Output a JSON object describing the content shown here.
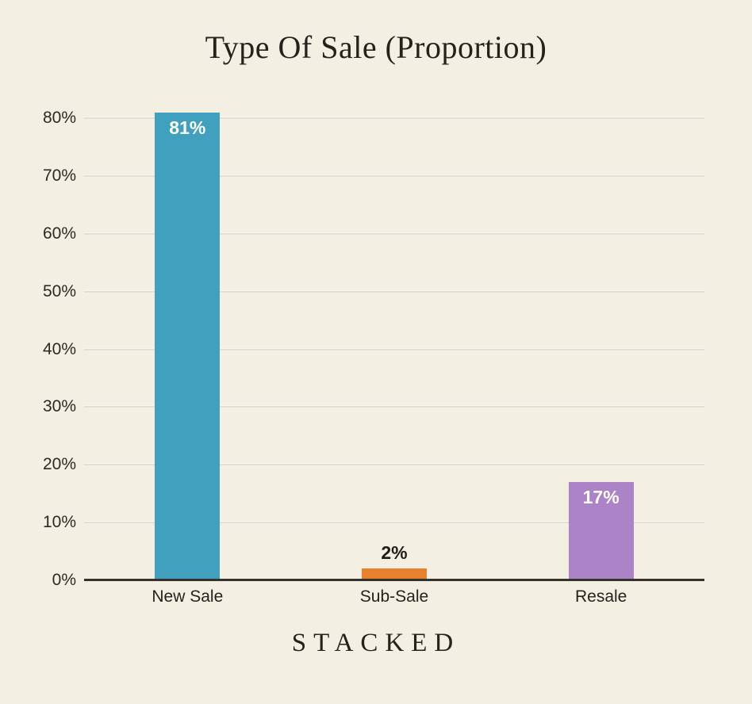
{
  "page": {
    "background_color": "#f3efe3"
  },
  "footer": {
    "brand": "STACKED"
  },
  "chart_data": {
    "type": "bar",
    "title": "Type Of Sale (Proportion)",
    "categories": [
      "New Sale",
      "Sub-Sale",
      "Resale"
    ],
    "values": [
      81,
      2,
      17
    ],
    "value_labels": [
      "81%",
      "2%",
      "17%"
    ],
    "value_label_placement": [
      "inside",
      "outside",
      "inside"
    ],
    "bar_colors": [
      "#41a0bd",
      "#e8812e",
      "#ac83c6"
    ],
    "xlabel": "",
    "ylabel": "",
    "ylim": [
      0,
      82.5
    ],
    "yticks": [
      {
        "value": 0,
        "label": "0%"
      },
      {
        "value": 10,
        "label": "10%"
      },
      {
        "value": 20,
        "label": "20%"
      },
      {
        "value": 30,
        "label": "30%"
      },
      {
        "value": 40,
        "label": "40%"
      },
      {
        "value": 50,
        "label": "50%"
      },
      {
        "value": 60,
        "label": "60%"
      },
      {
        "value": 70,
        "label": "70%"
      },
      {
        "value": 80,
        "label": "80%"
      }
    ],
    "grid": true,
    "legend": false,
    "style": {
      "gridline_color": "#e3dfd2",
      "axis_line_color": "#35322b",
      "tick_text_color": "#2d2a24",
      "value_label_light_color": "#fdfcf7",
      "value_label_dark_color": "#1f1d18",
      "title_color": "#26211a"
    }
  }
}
